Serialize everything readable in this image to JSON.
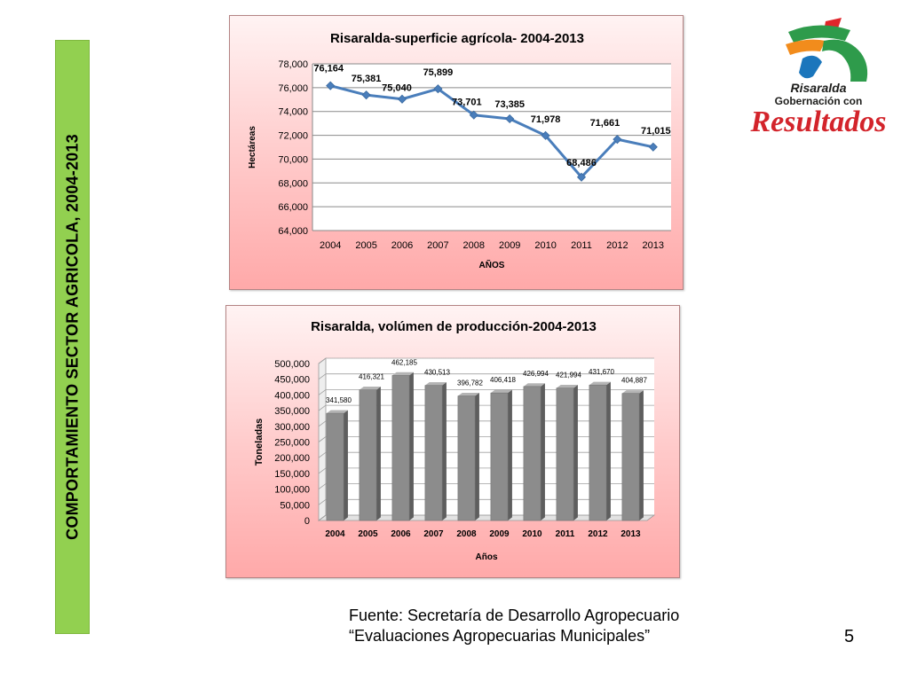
{
  "sidebar": {
    "title": "COMPORTAMIENTO SECTOR AGRICOLA, 2004-2013"
  },
  "logo": {
    "line1": "Risaralda",
    "line2": "Gobernación con",
    "line3": "Resultados"
  },
  "footer": {
    "source_line1": "Fuente: Secretaría de Desarrollo Agropecuario",
    "source_line2": "“Evaluaciones Agropecuarias Municipales”",
    "page_number": "5"
  },
  "chart_data": [
    {
      "type": "line",
      "title": "Risaralda-superficie agrícola- 2004-2013",
      "xlabel": "AÑOS",
      "ylabel": "Hectáreas",
      "categories": [
        "2004",
        "2005",
        "2006",
        "2007",
        "2008",
        "2009",
        "2010",
        "2011",
        "2012",
        "2013"
      ],
      "values": [
        76164,
        75381,
        75040,
        75899,
        73701,
        73385,
        71978,
        68486,
        71661,
        71015
      ],
      "data_labels": [
        "76,164",
        "75,381",
        "75,040",
        "75,899",
        "73,701",
        "73,385",
        "71,978",
        "68,486",
        "71,661",
        "71,015"
      ],
      "ylim": [
        64000,
        78000
      ],
      "yticks": [
        64000,
        66000,
        68000,
        70000,
        72000,
        74000,
        76000,
        78000
      ],
      "ytick_labels": [
        "64,000",
        "66,000",
        "68,000",
        "70,000",
        "72,000",
        "74,000",
        "76,000",
        "78,000"
      ],
      "grid": true,
      "line_color": "#4a7ebb"
    },
    {
      "type": "bar",
      "title": "Risaralda, volúmen de producción-2004-2013",
      "xlabel": "Años",
      "ylabel": "Toneladas",
      "categories": [
        "2004",
        "2005",
        "2006",
        "2007",
        "2008",
        "2009",
        "2010",
        "2011",
        "2012",
        "2013"
      ],
      "values": [
        341580,
        416321,
        462185,
        430513,
        396782,
        406418,
        426994,
        421994,
        431670,
        404887
      ],
      "data_labels": [
        "341,580",
        "416,321",
        "462,185",
        "430,513",
        "396,782",
        "406,418",
        "426,994",
        "421,994",
        "431,670",
        "404,887"
      ],
      "ylim": [
        0,
        500000
      ],
      "yticks": [
        0,
        50000,
        100000,
        150000,
        200000,
        250000,
        300000,
        350000,
        400000,
        450000,
        500000
      ],
      "ytick_labels": [
        "0",
        "50,000",
        "100,000",
        "150,000",
        "200,000",
        "250,000",
        "300,000",
        "350,000",
        "400,000",
        "450,000",
        "500,000"
      ],
      "grid": true,
      "bar_color": "#8c8c8c"
    }
  ]
}
